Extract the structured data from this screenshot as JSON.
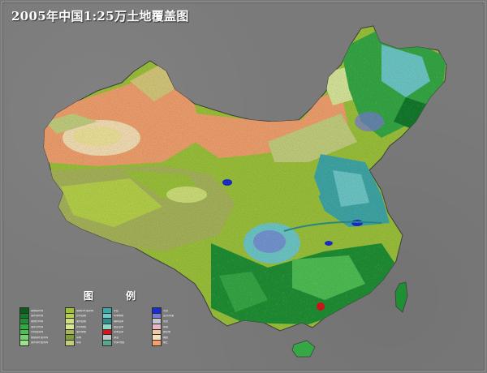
{
  "title": "2005年中国1:25万土地覆盖图",
  "legend": {
    "title": "图  例",
    "columns": [
      {
        "items": [
          {
            "color": "#0b5d1e",
            "label": "常绿阔叶林"
          },
          {
            "color": "#137a2c",
            "label": "落叶阔叶林"
          },
          {
            "color": "#1f8f34",
            "label": "常绿针叶林"
          },
          {
            "color": "#35a845",
            "label": "落叶针叶林"
          },
          {
            "color": "#4fbf54",
            "label": "针阔混交林"
          },
          {
            "color": "#73d06a",
            "label": "常绿阔叶灌木林"
          },
          {
            "color": "#9ee08b",
            "label": "落叶阔叶灌木林"
          }
        ]
      },
      {
        "items": [
          {
            "color": "#9cc23a",
            "label": "常绿针叶灌木林"
          },
          {
            "color": "#b7d24a",
            "label": "乔木园地"
          },
          {
            "color": "#cfe07a",
            "label": "灌木园地"
          },
          {
            "color": "#d9e79b",
            "label": "乔木绿地"
          },
          {
            "color": "#a8b45a",
            "label": "灌木绿地"
          },
          {
            "color": "#7f9e3a",
            "label": "草甸"
          },
          {
            "color": "#c4cf7e",
            "label": "草原"
          }
        ]
      },
      {
        "items": [
          {
            "color": "#3fa7a7",
            "label": "草丛"
          },
          {
            "color": "#6ec8c8",
            "label": "草本绿地"
          },
          {
            "color": "#2e8c8c",
            "label": "森林沼泽"
          },
          {
            "color": "#8fd6c4",
            "label": "灌丛沼泽"
          },
          {
            "color": "#d8141b",
            "label": "草本沼泽"
          },
          {
            "color": "#b9c6c6",
            "label": "湖泊"
          },
          {
            "color": "#5aa58c",
            "label": "水库/坑塘"
          }
        ]
      },
      {
        "items": [
          {
            "color": "#1a2bd0",
            "label": "河流"
          },
          {
            "color": "#7a7ad8",
            "label": "运河/水渠"
          },
          {
            "color": "#c7c7c7",
            "label": "水田"
          },
          {
            "color": "#e7b6c8",
            "label": "旱地"
          },
          {
            "color": "#f0c7a2",
            "label": "居住地"
          },
          {
            "color": "#f6dfb5",
            "label": "裸岩"
          },
          {
            "color": "#f2a06e",
            "label": "裸土"
          }
        ]
      }
    ]
  }
}
